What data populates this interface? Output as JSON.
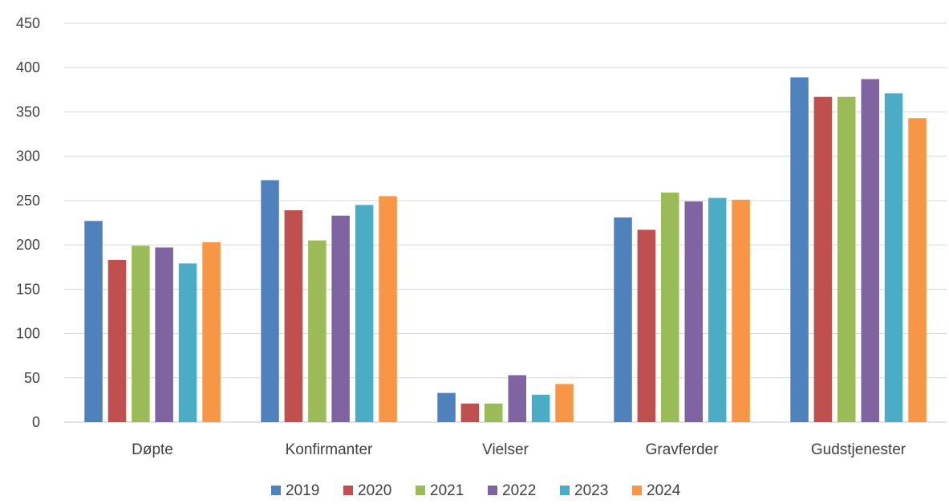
{
  "chart_data": {
    "type": "bar",
    "categories": [
      "Døpte",
      "Konfirmanter",
      "Vielser",
      "Gravferder",
      "Gudstjenester"
    ],
    "series": [
      {
        "name": "2019",
        "color": "#4f81bd",
        "values": [
          227,
          273,
          33,
          231,
          389
        ]
      },
      {
        "name": "2020",
        "color": "#c0504d",
        "values": [
          183,
          239,
          21,
          217,
          367
        ]
      },
      {
        "name": "2021",
        "color": "#9bbb59",
        "values": [
          199,
          205,
          21,
          259,
          367
        ]
      },
      {
        "name": "2022",
        "color": "#8064a2",
        "values": [
          197,
          233,
          53,
          249,
          387
        ]
      },
      {
        "name": "2023",
        "color": "#4bacc6",
        "values": [
          179,
          245,
          31,
          253,
          371
        ]
      },
      {
        "name": "2024",
        "color": "#f79646",
        "values": [
          203,
          255,
          43,
          251,
          343
        ]
      }
    ],
    "ylim": [
      0,
      450
    ],
    "yticks": [
      0,
      50,
      100,
      150,
      200,
      250,
      300,
      350,
      400,
      450
    ],
    "grid": true,
    "legend_position": "bottom",
    "title": "",
    "xlabel": "",
    "ylabel": ""
  }
}
